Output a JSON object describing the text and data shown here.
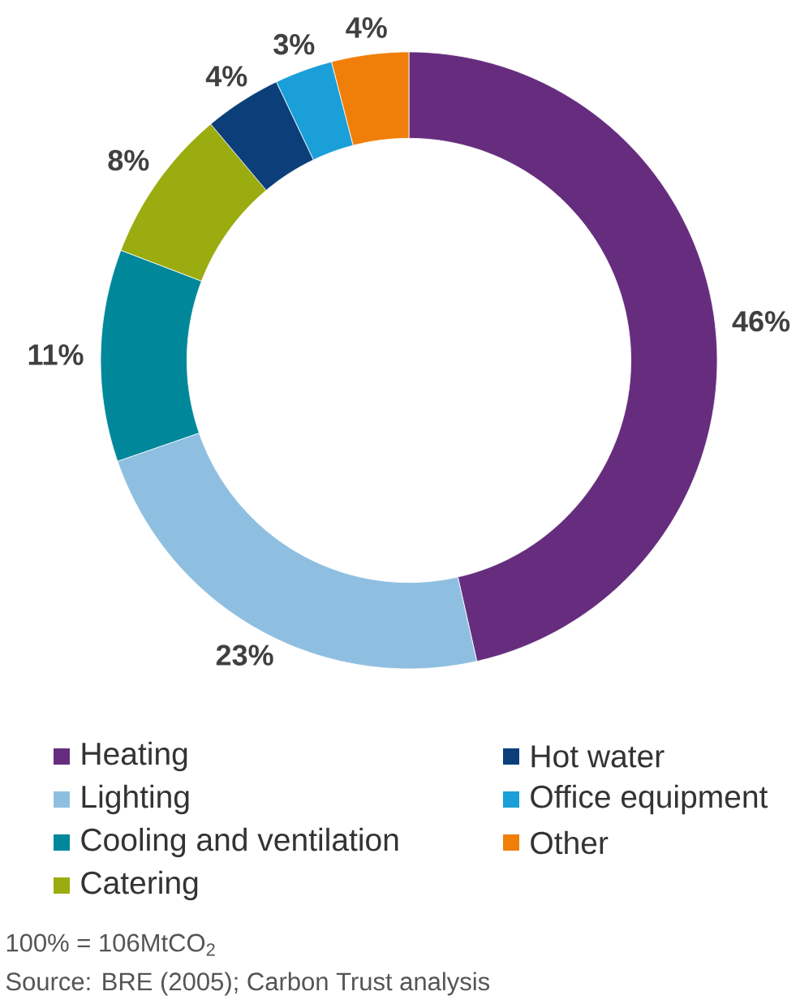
{
  "chart_data": {
    "type": "donut",
    "categories": [
      "Heating",
      "Lighting",
      "Cooling and ventilation",
      "Catering",
      "Hot water",
      "Office equipment",
      "Other"
    ],
    "values": [
      46,
      23,
      11,
      8,
      4,
      3,
      4
    ],
    "colors": [
      "#662d7e",
      "#8fbfe0",
      "#00889a",
      "#9aac0f",
      "#0c3f7a",
      "#1a9fd8",
      "#f07f09"
    ],
    "value_labels": [
      "46%",
      "23%",
      "11%",
      "8%",
      "4%",
      "3%",
      "4%"
    ],
    "legend": "bottom",
    "annotations": [
      "100% = 106MtCO$_{2}$",
      "Source: BRE (2005); Carbon Trust analysis"
    ]
  }
}
